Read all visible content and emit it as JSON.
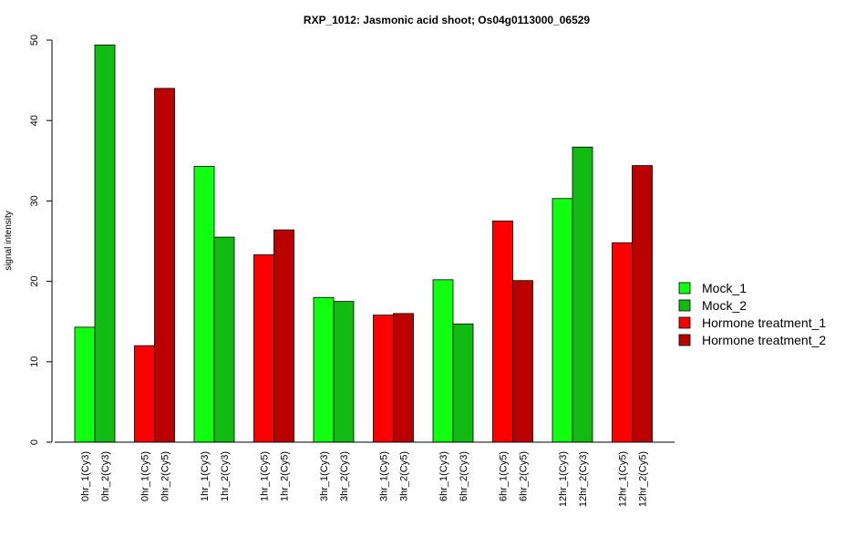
{
  "chart_data": {
    "type": "bar",
    "title": "RXP_1012: Jasmonic acid shoot; Os04g0113000_06529",
    "xlabel": "",
    "ylabel": "signal intensity",
    "ylim": [
      0,
      50
    ],
    "yticks": [
      0,
      10,
      20,
      30,
      40,
      50
    ],
    "legend_position": "right",
    "legend": [
      {
        "name": "Mock_1",
        "color": "#11FF11"
      },
      {
        "name": "Mock_2",
        "color": "#11BB11"
      },
      {
        "name": "Hormone treatment_1",
        "color": "#FF0000"
      },
      {
        "name": "Hormone treatment_2",
        "color": "#BB0000"
      }
    ],
    "groups": [
      {
        "bars": [
          {
            "label": "0hr_1(Cy3)",
            "value": 14.3,
            "series": 0
          },
          {
            "label": "0hr_2(Cy3)",
            "value": 49.4,
            "series": 1
          }
        ]
      },
      {
        "bars": [
          {
            "label": "0hr_1(Cy5)",
            "value": 12.0,
            "series": 2
          },
          {
            "label": "0hr_2(Cy5)",
            "value": 44.0,
            "series": 3
          }
        ]
      },
      {
        "bars": [
          {
            "label": "1hr_1(Cy3)",
            "value": 34.3,
            "series": 0
          },
          {
            "label": "1hr_2(Cy3)",
            "value": 25.5,
            "series": 1
          }
        ]
      },
      {
        "bars": [
          {
            "label": "1hr_1(Cy5)",
            "value": 23.3,
            "series": 2
          },
          {
            "label": "1hr_2(Cy5)",
            "value": 26.4,
            "series": 3
          }
        ]
      },
      {
        "bars": [
          {
            "label": "3hr_1(Cy3)",
            "value": 18.0,
            "series": 0
          },
          {
            "label": "3hr_2(Cy3)",
            "value": 17.5,
            "series": 1
          }
        ]
      },
      {
        "bars": [
          {
            "label": "3hr_1(Cy5)",
            "value": 15.8,
            "series": 2
          },
          {
            "label": "3hr_2(Cy5)",
            "value": 16.0,
            "series": 3
          }
        ]
      },
      {
        "bars": [
          {
            "label": "6hr_1(Cy3)",
            "value": 20.2,
            "series": 0
          },
          {
            "label": "6hr_2(Cy3)",
            "value": 14.7,
            "series": 1
          }
        ]
      },
      {
        "bars": [
          {
            "label": "6hr_1(Cy5)",
            "value": 27.5,
            "series": 2
          },
          {
            "label": "6hr_2(Cy5)",
            "value": 20.1,
            "series": 3
          }
        ]
      },
      {
        "bars": [
          {
            "label": "12hr_1(Cy3)",
            "value": 30.3,
            "series": 0
          },
          {
            "label": "12hr_2(Cy3)",
            "value": 36.7,
            "series": 1
          }
        ]
      },
      {
        "bars": [
          {
            "label": "12hr_1(Cy5)",
            "value": 24.8,
            "series": 2
          },
          {
            "label": "12hr_2(Cy5)",
            "value": 34.4,
            "series": 3
          }
        ]
      }
    ]
  }
}
